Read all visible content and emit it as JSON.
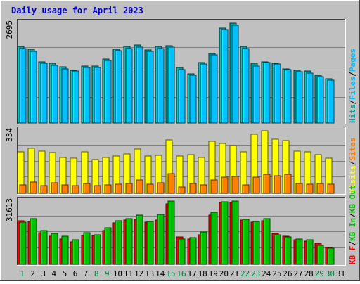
{
  "title": "Daily usage for April 2023",
  "colors": {
    "background": "#C0C0C0",
    "plot_bg": "#C0C0C0",
    "title": "#0000CC",
    "gridline": "#808080",
    "hits": "#00A0A0",
    "files": "#00C0FF",
    "pages": "#00A0A0",
    "visits": "#FFFF00",
    "sites": "#FF8000",
    "kb_in": "#00C000",
    "kb_f": "#FF0000",
    "weekend_label": "#008040",
    "weekday_label": "#000000"
  },
  "chart_data": [
    {
      "type": "bar",
      "panel": "top",
      "ymax_label": "2695",
      "ylim": [
        0,
        2695
      ],
      "grid": true,
      "legend": [
        {
          "text": "Hits",
          "color": "#00A0A0"
        },
        {
          "text": "/",
          "color": "#000000"
        },
        {
          "text": "Files",
          "color": "#00C0FF"
        },
        {
          "text": "/",
          "color": "#000000"
        },
        {
          "text": "Pages",
          "color": "#00C0FF"
        }
      ],
      "categories": [
        "1",
        "2",
        "3",
        "4",
        "5",
        "6",
        "7",
        "8",
        "9",
        "10",
        "11",
        "12",
        "13",
        "14",
        "15",
        "16",
        "17",
        "18",
        "19",
        "20",
        "21",
        "22",
        "23",
        "24",
        "25",
        "26",
        "27",
        "28",
        "29",
        "30",
        "31"
      ],
      "series": [
        {
          "name": "Hits",
          "values": [
            2065,
            1990,
            1660,
            1610,
            1510,
            1430,
            1540,
            1540,
            1730,
            2000,
            2060,
            2105,
            1970,
            2070,
            2095,
            1500,
            1330,
            1640,
            1880,
            2565,
            2695,
            2060,
            1610,
            1660,
            1620,
            1470,
            1420,
            1400,
            1290,
            1195,
            null
          ]
        },
        {
          "name": "Files",
          "values": [
            2020,
            1945,
            1615,
            1555,
            1460,
            1400,
            1500,
            1505,
            1690,
            1950,
            2020,
            2055,
            1930,
            2010,
            2050,
            1445,
            1290,
            1600,
            1835,
            2525,
            2640,
            2010,
            1545,
            1630,
            1585,
            1440,
            1380,
            1350,
            1255,
            1155,
            null
          ]
        }
      ]
    },
    {
      "type": "bar",
      "panel": "middle",
      "ymax_label": "334",
      "ylim": [
        0,
        334
      ],
      "grid": true,
      "legend": [
        {
          "text": "Visits",
          "color": "#FFFF00"
        },
        {
          "text": "/",
          "color": "#000000"
        },
        {
          "text": "Sites",
          "color": "#FF8000"
        }
      ],
      "categories": [
        "1",
        "2",
        "3",
        "4",
        "5",
        "6",
        "7",
        "8",
        "9",
        "10",
        "11",
        "12",
        "13",
        "14",
        "15",
        "16",
        "17",
        "18",
        "19",
        "20",
        "21",
        "22",
        "23",
        "24",
        "25",
        "26",
        "27",
        "28",
        "29",
        "30",
        "31"
      ],
      "series": [
        {
          "name": "Visits",
          "values": [
            222,
            241,
            226,
            218,
            193,
            189,
            222,
            180,
            191,
            200,
            212,
            235,
            198,
            204,
            284,
            199,
            205,
            193,
            277,
            266,
            256,
            221,
            317,
            334,
            289,
            282,
            224,
            223,
            205,
            188,
            null
          ]
        },
        {
          "name": "Sites",
          "values": [
            44,
            59,
            40,
            58,
            46,
            42,
            53,
            43,
            44,
            48,
            51,
            72,
            50,
            55,
            104,
            33,
            52,
            46,
            70,
            85,
            90,
            45,
            85,
            102,
            93,
            103,
            52,
            50,
            53,
            48,
            null
          ]
        }
      ]
    },
    {
      "type": "bar",
      "panel": "bottom",
      "ymax_label": "31613",
      "ylim": [
        0,
        31613
      ],
      "grid": true,
      "legend": [
        {
          "text": "KB F",
          "color": "#FF0000"
        },
        {
          "text": "/",
          "color": "#000000"
        },
        {
          "text": "KB In",
          "color": "#00C000"
        },
        {
          "text": "/",
          "color": "#000000"
        },
        {
          "text": "KB Out",
          "color": "#00C000"
        }
      ],
      "categories": [
        "1",
        "2",
        "3",
        "4",
        "5",
        "6",
        "7",
        "8",
        "9",
        "10",
        "11",
        "12",
        "13",
        "14",
        "15",
        "16",
        "17",
        "18",
        "19",
        "20",
        "21",
        "22",
        "23",
        "24",
        "25",
        "26",
        "27",
        "28",
        "29",
        "30",
        "31"
      ],
      "series": [
        {
          "name": "KB F",
          "values": [
            21800,
            21400,
            15800,
            14000,
            12700,
            11300,
            14300,
            14500,
            16900,
            20800,
            22200,
            22500,
            21000,
            22300,
            30300,
            13600,
            12700,
            14600,
            24700,
            31000,
            31000,
            22200,
            20900,
            21700,
            15400,
            14000,
            12300,
            11700,
            10500,
            8600,
            null
          ]
        },
        {
          "name": "KB In",
          "values": [
            21000,
            22900,
            16900,
            15600,
            14100,
            12300,
            15800,
            14900,
            18300,
            21900,
            22900,
            24700,
            21600,
            24800,
            31613,
            12700,
            13500,
            16200,
            25900,
            31100,
            31613,
            22500,
            21500,
            23000,
            14900,
            13600,
            12500,
            12200,
            9400,
            8100,
            null
          ]
        }
      ]
    }
  ],
  "x_labels": {
    "days": [
      "1",
      "2",
      "3",
      "4",
      "5",
      "6",
      "7",
      "8",
      "9",
      "10",
      "11",
      "12",
      "13",
      "14",
      "15",
      "16",
      "17",
      "18",
      "19",
      "20",
      "21",
      "22",
      "23",
      "24",
      "25",
      "26",
      "27",
      "28",
      "29",
      "30",
      "31"
    ],
    "weekend": [
      1,
      8,
      9,
      15,
      16,
      22,
      23,
      29,
      30
    ]
  }
}
